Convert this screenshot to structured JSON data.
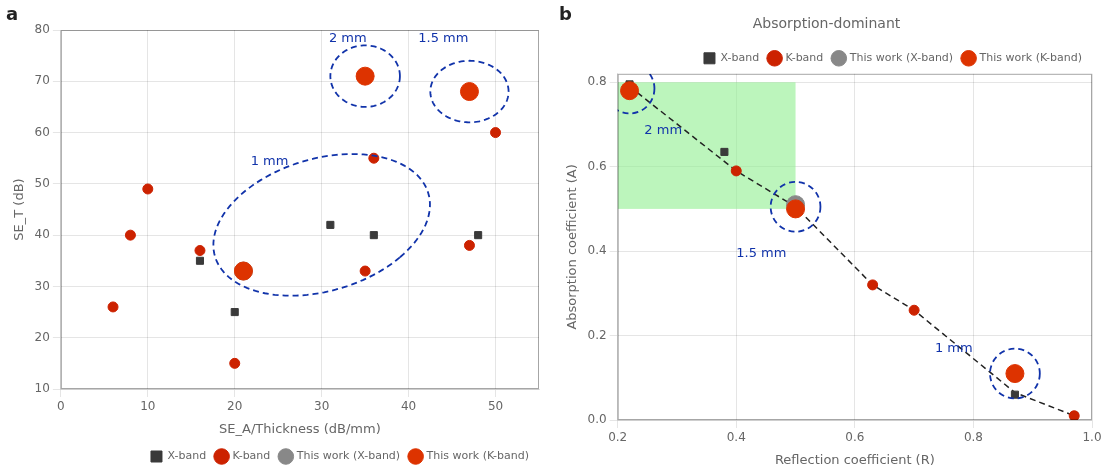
{
  "chart_data": [
    {
      "type": "scatter",
      "label": "a",
      "xlabel": "SE_A/Thickness (dB/mm)",
      "ylabel": "SE_T (dB)",
      "xlim": [
        0,
        55
      ],
      "xticks": [
        0,
        10,
        20,
        30,
        40,
        50
      ],
      "ylim": [
        10,
        80
      ],
      "yticks": [
        10,
        20,
        30,
        40,
        50,
        60,
        70,
        80
      ],
      "grid": true,
      "legend": "lower right",
      "series": [
        {
          "name": "X-band",
          "color": "#3a3a3a",
          "marker": "square",
          "x": [
            16,
            20,
            31,
            36,
            48
          ],
          "values": [
            35,
            25,
            42,
            40,
            40
          ]
        },
        {
          "name": "K-band",
          "color": "#cc2200",
          "marker": "circle",
          "x": [
            6,
            8,
            10,
            16,
            20,
            35,
            36,
            47,
            50
          ],
          "values": [
            26,
            40,
            49,
            37,
            15,
            33,
            55,
            38,
            60
          ]
        },
        {
          "name": "This work (X-band)",
          "color": "#888888",
          "marker": "circle_large",
          "x": [
            21
          ],
          "values": [
            33
          ]
        },
        {
          "name": "This work (K-band)",
          "color": "#dd3300",
          "marker": "circle_large",
          "x": [
            35,
            47,
            21
          ],
          "values": [
            71,
            68,
            33
          ]
        }
      ],
      "ellipses": [
        {
          "cx": 30,
          "cy": 42,
          "width": 22,
          "height": 30,
          "angle": -35,
          "color": "#1133aa",
          "line_style": "dashed"
        },
        {
          "cx": 35,
          "cy": 71,
          "width": 8,
          "height": 12,
          "angle": 0,
          "color": "#1133aa",
          "line_style": "dashed"
        },
        {
          "cx": 47,
          "cy": 68,
          "width": 9,
          "height": 12,
          "angle": 0,
          "color": "#1133aa",
          "line_style": "dashed"
        }
      ],
      "annotations": [
        {
          "text": "2 mm",
          "x": 33,
          "y": 77,
          "color": "#1133aa"
        },
        {
          "text": "1.5 mm",
          "x": 44,
          "y": 77,
          "color": "#1133aa"
        },
        {
          "text": "1 mm",
          "x": 24,
          "y": 53,
          "color": "#1133aa"
        }
      ]
    },
    {
      "type": "scatter",
      "label": "b",
      "title": "Absorption-dominant",
      "xlabel": "Reflection coefficient (R)",
      "ylabel": "Absorption coefficient (A)",
      "xlim": [
        0.2,
        1.0
      ],
      "xticks": [
        0.2,
        0.4,
        0.6,
        0.8,
        {
          "value": 1,
          "label": "1.0"
        }
      ],
      "ylim": [
        0.0,
        0.82
      ],
      "yticks": [
        {
          "value": 0,
          "label": "0.0"
        },
        0.2,
        0.4,
        0.6,
        0.8
      ],
      "grid": true,
      "legend": "upper right",
      "regions": [
        {
          "x0": 0.2,
          "x1": 0.5,
          "y0": 0.5,
          "y1": 0.8,
          "color": "#90ee90"
        }
      ],
      "series": [
        {
          "type": "line",
          "line_style": "dashed",
          "color": "#222222",
          "x": [
            0.22,
            0.4,
            0.5,
            0.63,
            0.7,
            0.87,
            0.97
          ],
          "values": [
            0.79,
            0.59,
            0.505,
            0.32,
            0.26,
            0.065,
            0.01
          ]
        },
        {
          "name": "X-band",
          "color": "#3a3a3a",
          "marker": "square",
          "x": [
            0.22,
            0.38,
            0.5,
            0.87,
            0.97
          ],
          "values": [
            0.795,
            0.635,
            0.51,
            0.06,
            0.01
          ]
        },
        {
          "name": "K-band",
          "color": "#cc2200",
          "marker": "circle",
          "x": [
            0.22,
            0.4,
            0.5,
            0.63,
            0.7,
            0.87,
            0.97
          ],
          "values": [
            0.78,
            0.59,
            0.5,
            0.32,
            0.26,
            0.11,
            0.01
          ]
        },
        {
          "name": "This work (X-band)",
          "color": "#888888",
          "marker": "circle_large",
          "x": [
            0.5
          ],
          "values": [
            0.51
          ]
        },
        {
          "name": "This work (K-band)",
          "color": "#dd3300",
          "marker": "circle_large",
          "x": [
            0.22,
            0.5,
            0.87
          ],
          "values": [
            0.78,
            0.5,
            0.11
          ]
        }
      ],
      "circles": [
        {
          "cx": 0.22,
          "cy": 0.785,
          "rx": 0.042,
          "color": "#1133aa",
          "line_style": "dashed"
        },
        {
          "cx": 0.5,
          "cy": 0.505,
          "rx": 0.042,
          "color": "#1133aa",
          "line_style": "dashed"
        },
        {
          "cx": 0.87,
          "cy": 0.11,
          "rx": 0.042,
          "color": "#1133aa",
          "line_style": "dashed"
        }
      ],
      "annotations": [
        {
          "text": "2 mm",
          "x": 0.245,
          "y": 0.7,
          "color": "#1133aa"
        },
        {
          "text": "1.5 mm",
          "x": 0.4,
          "y": 0.41,
          "color": "#1133aa"
        },
        {
          "text": "1 mm",
          "x": 0.735,
          "y": 0.185,
          "color": "#1133aa"
        }
      ]
    }
  ]
}
